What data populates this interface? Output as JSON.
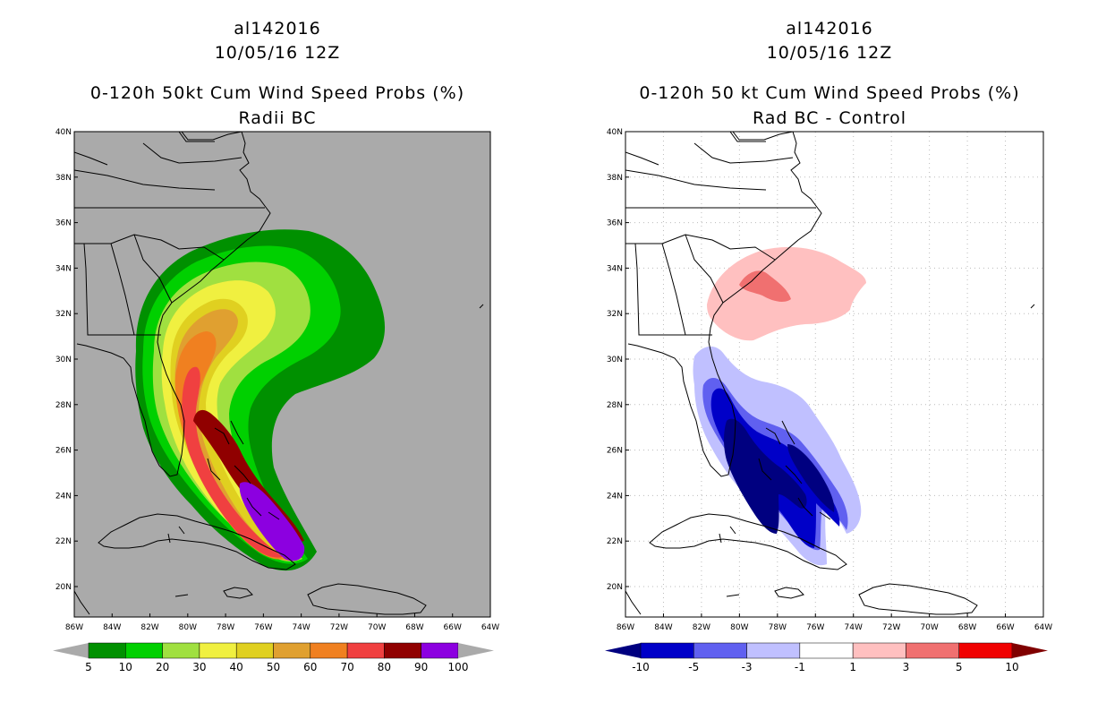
{
  "left_panel": {
    "storm_id": "al142016",
    "datetime": "10/05/16 12Z",
    "title": "0-120h 50kt Cum Wind Speed Probs (%)",
    "subtitle": "Radii BC",
    "background_color": "#aaaaaa",
    "colorbar": {
      "labels": [
        "5",
        "10",
        "20",
        "30",
        "40",
        "50",
        "60",
        "70",
        "80",
        "90",
        "100"
      ],
      "colors": [
        "#009000",
        "#00d000",
        "#a0e040",
        "#f0f040",
        "#e0d020",
        "#e0a030",
        "#f08020",
        "#f04040",
        "#900000",
        "#8c00e0"
      ],
      "under_color": "#aaaaaa",
      "over_color": "#aaaaaa"
    }
  },
  "right_panel": {
    "storm_id": "al142016",
    "datetime": "10/05/16 12Z",
    "title": "0-120h 50 kt Cum Wind Speed Probs (%)",
    "subtitle": "Rad BC - Control",
    "background_color": "#ffffff",
    "colorbar": {
      "labels": [
        "-10",
        "-5",
        "-3",
        "-1",
        "1",
        "3",
        "5",
        "10"
      ],
      "colors": [
        "#0000c8",
        "#6060f0",
        "#c0c0ff",
        "#ffffff",
        "#ffc0c0",
        "#f07070",
        "#f00000"
      ],
      "under_color": "#000080",
      "over_color": "#800000"
    }
  },
  "axes": {
    "lat_labels": [
      "40N",
      "38N",
      "36N",
      "34N",
      "32N",
      "30N",
      "28N",
      "26N",
      "24N",
      "22N",
      "20N"
    ],
    "lon_labels": [
      "86W",
      "84W",
      "82W",
      "80W",
      "78W",
      "76W",
      "74W",
      "72W",
      "70W",
      "68W",
      "66W",
      "64W"
    ]
  }
}
